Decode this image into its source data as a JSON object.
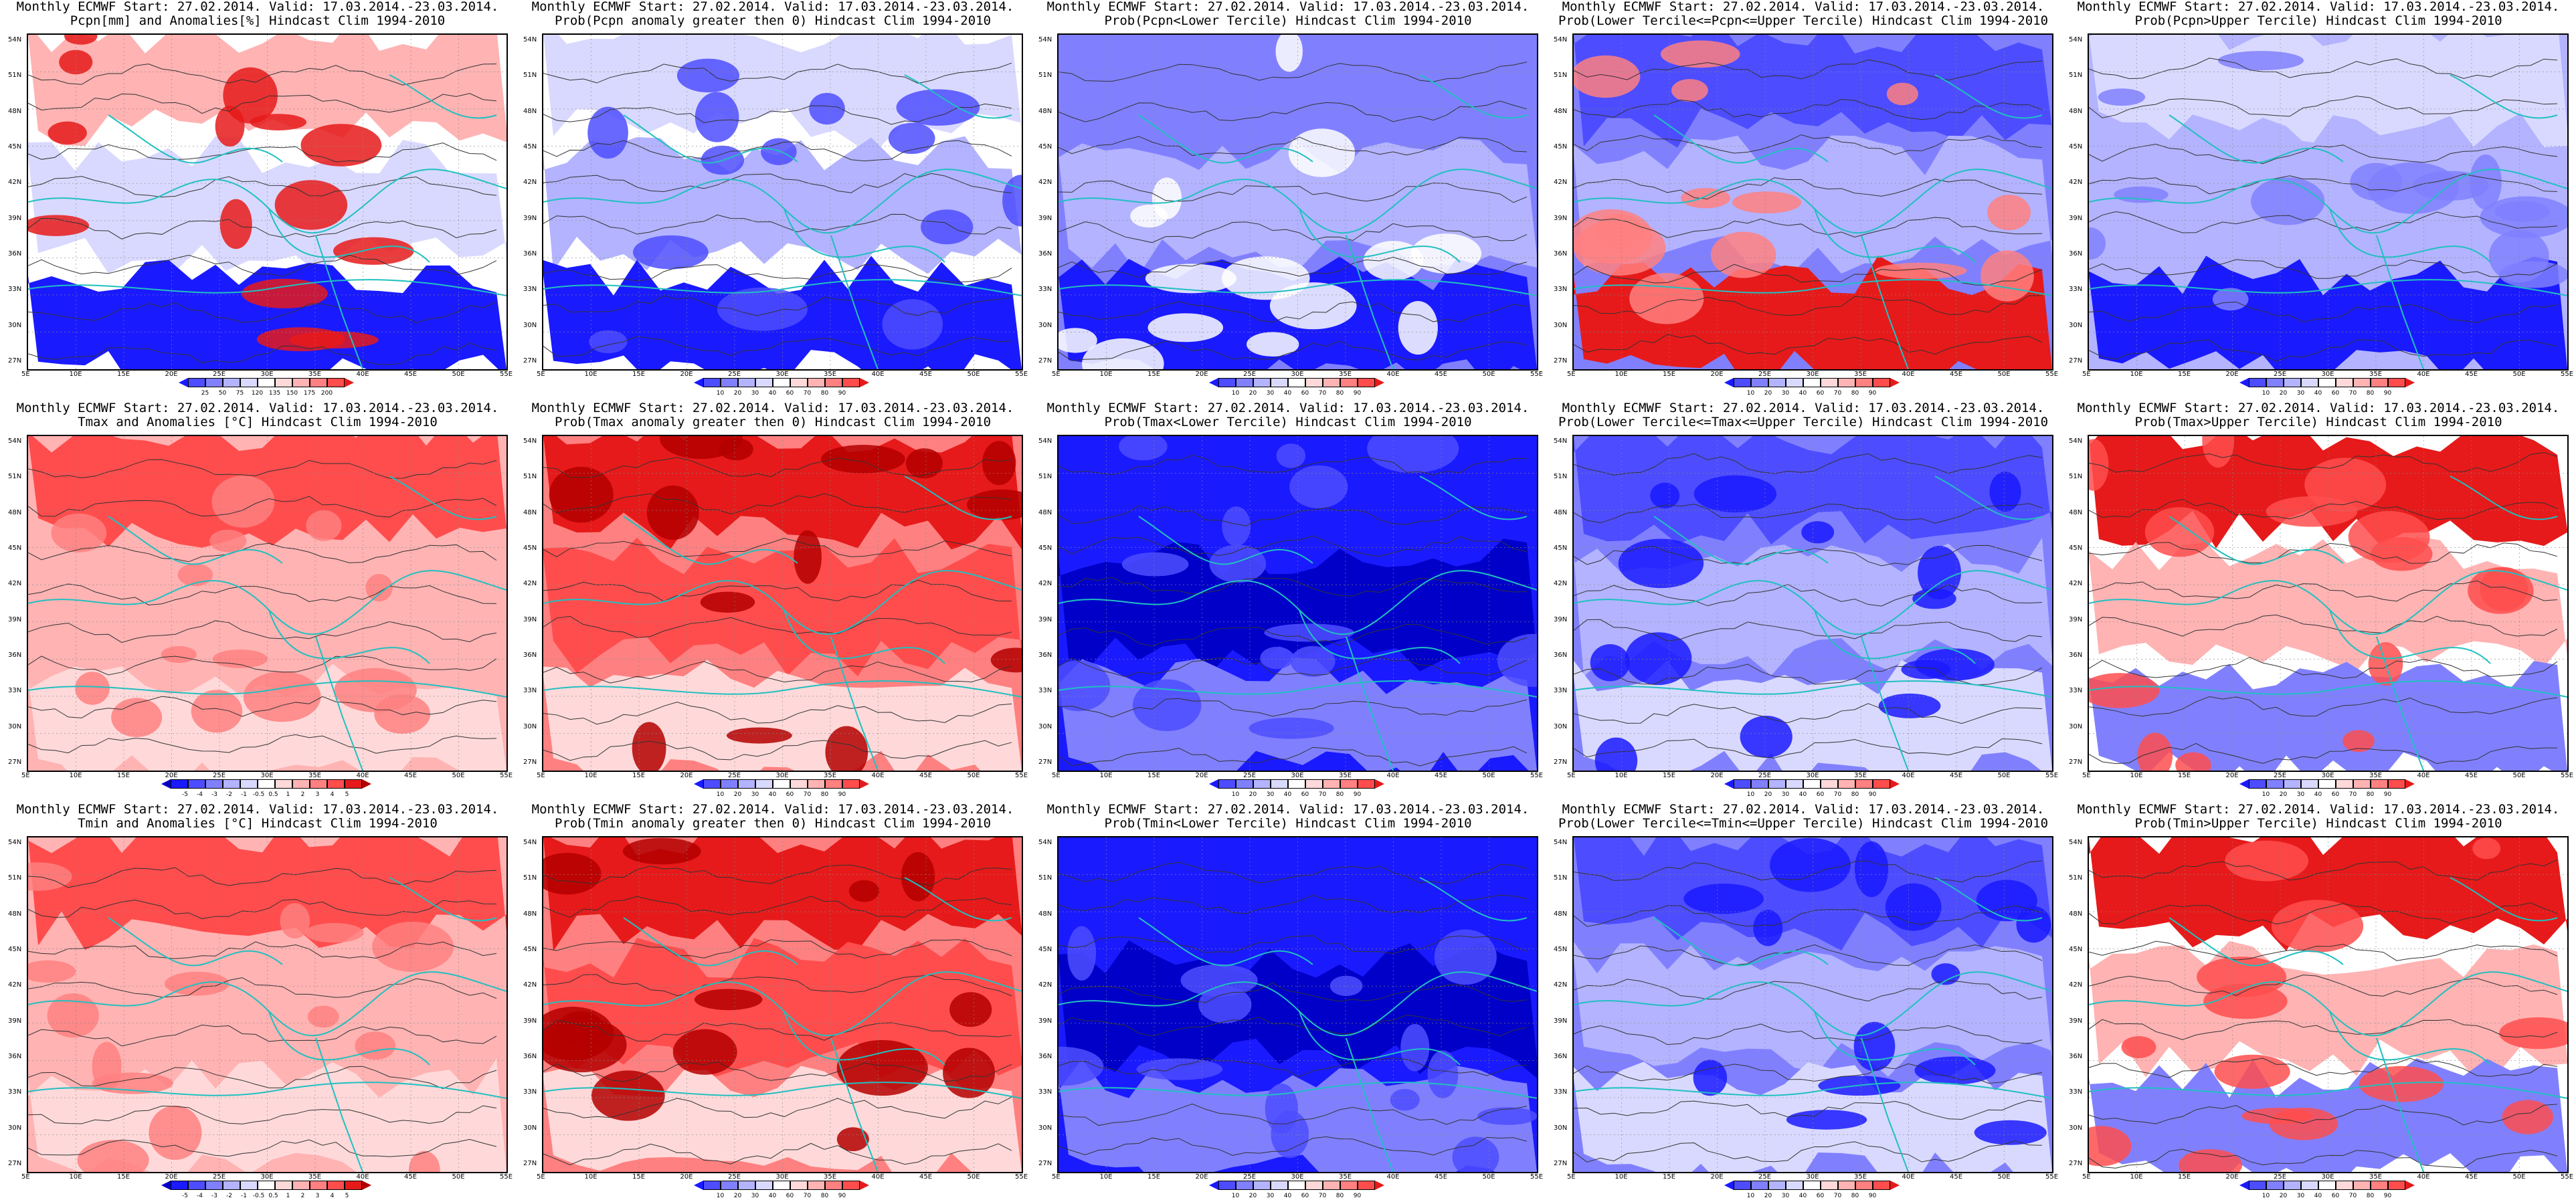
{
  "panels": [
    {
      "row": 0,
      "col": 0,
      "title1": "Monthly ECMWF Start: 27.02.2014. Valid: 17.03.2014.-23.03.2014.",
      "title2": "Pcpn[mm] and Anomalies[%] Hindcast Clim 1994-2010",
      "scale": "anom_pcpn",
      "theme": "pcpn_anom"
    },
    {
      "row": 0,
      "col": 1,
      "title1": "Monthly ECMWF Start: 27.02.2014. Valid: 17.03.2014.-23.03.2014.",
      "title2": "Prob(Pcpn anomaly greater then 0) Hindcast Clim 1994-2010",
      "scale": "prob",
      "theme": "pcpn_prob"
    },
    {
      "row": 0,
      "col": 2,
      "title1": "Monthly ECMWF Start: 27.02.2014. Valid: 17.03.2014.-23.03.2014.",
      "title2": "Prob(Pcpn<Lower Tercile) Hindcast Clim 1994-2010",
      "scale": "prob",
      "theme": "pcpn_lower"
    },
    {
      "row": 0,
      "col": 3,
      "title1": "Monthly ECMWF Start: 27.02.2014. Valid: 17.03.2014.-23.03.2014.",
      "title2": "Prob(Lower Tercile<=Pcpn<=Upper Tercile) Hindcast Clim 1994-2010",
      "scale": "prob",
      "theme": "pcpn_mid"
    },
    {
      "row": 0,
      "col": 4,
      "title1": "Monthly ECMWF Start: 27.02.2014. Valid: 17.03.2014.-23.03.2014.",
      "title2": "Prob(Pcpn>Upper Tercile) Hindcast Clim 1994-2010",
      "scale": "prob",
      "theme": "pcpn_upper"
    },
    {
      "row": 1,
      "col": 0,
      "title1": "Monthly ECMWF Start: 27.02.2014. Valid: 17.03.2014.-23.03.2014.",
      "title2": "Tmax and Anomalies [°C] Hindcast Clim 1994-2010",
      "scale": "anom_temp",
      "theme": "temp_anom"
    },
    {
      "row": 1,
      "col": 1,
      "title1": "Monthly ECMWF Start: 27.02.2014. Valid: 17.03.2014.-23.03.2014.",
      "title2": "Prob(Tmax anomaly greater then 0) Hindcast Clim 1994-2010",
      "scale": "prob",
      "theme": "temp_prob"
    },
    {
      "row": 1,
      "col": 2,
      "title1": "Monthly ECMWF Start: 27.02.2014. Valid: 17.03.2014.-23.03.2014.",
      "title2": "Prob(Tmax<Lower Tercile) Hindcast Clim 1994-2010",
      "scale": "prob",
      "theme": "temp_lower"
    },
    {
      "row": 1,
      "col": 3,
      "title1": "Monthly ECMWF Start: 27.02.2014. Valid: 17.03.2014.-23.03.2014.",
      "title2": "Prob(Lower Tercile<=Tmax<=Upper Tercile) Hindcast Clim 1994-2010",
      "scale": "prob",
      "theme": "temp_mid"
    },
    {
      "row": 1,
      "col": 4,
      "title1": "Monthly ECMWF Start: 27.02.2014. Valid: 17.03.2014.-23.03.2014.",
      "title2": "Prob(Tmax>Upper Tercile) Hindcast Clim 1994-2010",
      "scale": "prob",
      "theme": "temp_upper"
    },
    {
      "row": 2,
      "col": 0,
      "title1": "Monthly ECMWF Start: 27.02.2014. Valid: 17.03.2014.-23.03.2014.",
      "title2": "Tmin and Anomalies [°C] Hindcast Clim 1994-2010",
      "scale": "anom_temp",
      "theme": "temp_anom"
    },
    {
      "row": 2,
      "col": 1,
      "title1": "Monthly ECMWF Start: 27.02.2014. Valid: 17.03.2014.-23.03.2014.",
      "title2": "Prob(Tmin anomaly greater then 0) Hindcast Clim 1994-2010",
      "scale": "prob",
      "theme": "temp_prob"
    },
    {
      "row": 2,
      "col": 2,
      "title1": "Monthly ECMWF Start: 27.02.2014. Valid: 17.03.2014.-23.03.2014.",
      "title2": "Prob(Tmin<Lower Tercile) Hindcast Clim 1994-2010",
      "scale": "prob",
      "theme": "temp_lower"
    },
    {
      "row": 2,
      "col": 3,
      "title1": "Monthly ECMWF Start: 27.02.2014. Valid: 17.03.2014.-23.03.2014.",
      "title2": "Prob(Lower Tercile<=Tmin<=Upper Tercile) Hindcast Clim 1994-2010",
      "scale": "prob",
      "theme": "temp_mid"
    },
    {
      "row": 2,
      "col": 4,
      "title1": "Monthly ECMWF Start: 27.02.2014. Valid: 17.03.2014.-23.03.2014.",
      "title2": "Prob(Tmin>Upper Tercile) Hindcast Clim 1994-2010",
      "scale": "prob",
      "theme": "temp_upper"
    }
  ],
  "axes": {
    "lat_labels": [
      "54N",
      "51N",
      "48N",
      "45N",
      "42N",
      "39N",
      "36N",
      "33N",
      "30N",
      "27N"
    ],
    "lon_labels": [
      "5E",
      "10E",
      "15E",
      "20E",
      "25E",
      "30E",
      "35E",
      "40E",
      "45E",
      "50E",
      "55E"
    ]
  },
  "scales": {
    "prob": {
      "labels": [
        "10",
        "20",
        "30",
        "40",
        "60",
        "70",
        "80",
        "90"
      ],
      "colors": [
        "#1a1aff",
        "#4d4dff",
        "#8080ff",
        "#b3b3ff",
        "#d9d9ff",
        "#ffffff",
        "#ffd9d9",
        "#ffb3b3",
        "#ff8080",
        "#ff4d4d",
        "#e61a1a"
      ]
    },
    "anom_pcpn": {
      "labels": [
        "25",
        "50",
        "75",
        "120",
        "135",
        "150",
        "175",
        "200"
      ],
      "colors": [
        "#1a1aff",
        "#4d4dff",
        "#8080ff",
        "#b3b3ff",
        "#d9d9ff",
        "#ffffff",
        "#ffd9d9",
        "#ffb3b3",
        "#ff8080",
        "#ff4d4d",
        "#e61a1a"
      ]
    },
    "anom_temp": {
      "labels": [
        "-5",
        "-4",
        "-3",
        "-2",
        "-1",
        "-0.5",
        "0.5",
        "1",
        "2",
        "3",
        "4",
        "5"
      ],
      "colors": [
        "#0000c8",
        "#1a1aff",
        "#4d4dff",
        "#8080ff",
        "#b3b3ff",
        "#d9d9ff",
        "#ffffff",
        "#ffd9d9",
        "#ffb3b3",
        "#ff8080",
        "#ff4d4d",
        "#e61a1a",
        "#b40000"
      ]
    }
  },
  "themes": {
    "pcpn_anom": {
      "bg": "#ffffff",
      "top": "#ffb3b3",
      "mid": "#d9d9ff",
      "bottom": "#1a1aff",
      "accent": "#e61a1a"
    },
    "pcpn_prob": {
      "bg": "#ffffff",
      "top": "#d9d9ff",
      "mid": "#b3b3ff",
      "bottom": "#1a1aff",
      "accent": "#4d4dff"
    },
    "pcpn_lower": {
      "bg": "#8080ff",
      "top": "#8080ff",
      "mid": "#b3b3ff",
      "bottom": "#1a1aff",
      "accent": "#ffffff"
    },
    "pcpn_mid": {
      "bg": "#8080ff",
      "top": "#4d4dff",
      "mid": "#b3b3ff",
      "bottom": "#e61a1a",
      "accent": "#ff8080"
    },
    "pcpn_upper": {
      "bg": "#b3b3ff",
      "top": "#d9d9ff",
      "mid": "#b3b3ff",
      "bottom": "#1a1aff",
      "accent": "#8080ff"
    },
    "temp_anom": {
      "bg": "#ffb3b3",
      "top": "#ff4d4d",
      "mid": "#ffb3b3",
      "bottom": "#ffd9d9",
      "accent": "#ff8080"
    },
    "temp_prob": {
      "bg": "#ff8080",
      "top": "#e61a1a",
      "mid": "#ff4d4d",
      "bottom": "#ffd9d9",
      "accent": "#b40000"
    },
    "temp_lower": {
      "bg": "#1a1aff",
      "top": "#1a1aff",
      "mid": "#0000c8",
      "bottom": "#8080ff",
      "accent": "#4d4dff"
    },
    "temp_mid": {
      "bg": "#8080ff",
      "top": "#4d4dff",
      "mid": "#b3b3ff",
      "bottom": "#d9d9ff",
      "accent": "#1a1aff"
    },
    "temp_upper": {
      "bg": "#ffffff",
      "top": "#e61a1a",
      "mid": "#ffb3b3",
      "bottom": "#8080ff",
      "accent": "#ff4d4d"
    }
  }
}
